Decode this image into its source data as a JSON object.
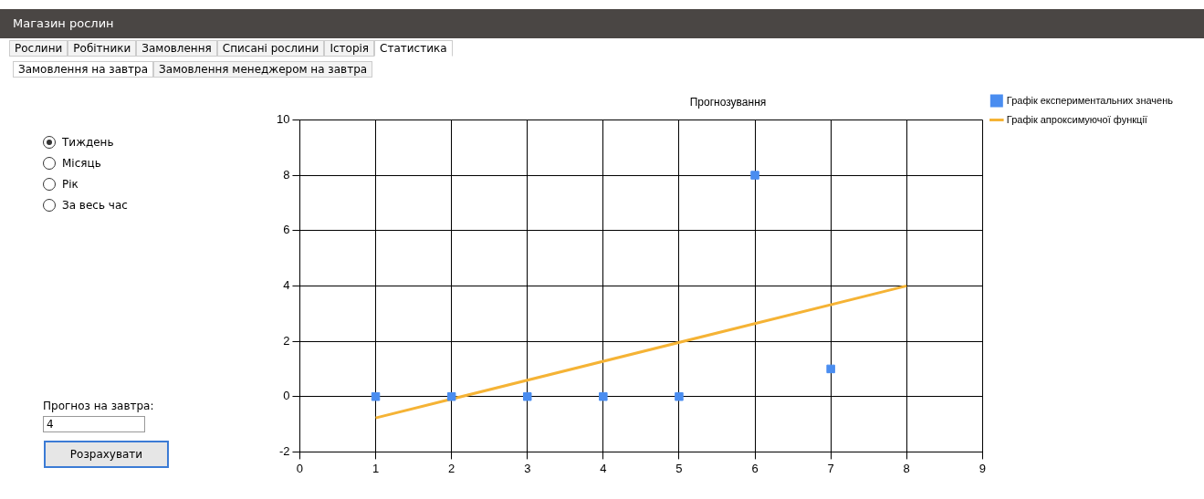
{
  "chart_data": {
    "type": "scatter",
    "title": "Прогнозування",
    "x": [
      1,
      2,
      3,
      4,
      5,
      6,
      7
    ],
    "series": [
      {
        "name": "Графік експериментальних значень",
        "color": "#4a8df0",
        "values": [
          0,
          0,
          0,
          0,
          0,
          8,
          1
        ],
        "marker": "square"
      },
      {
        "name": "Графік апроксимуючої функції",
        "type": "line",
        "color": "#f5b335",
        "x": [
          1,
          8
        ],
        "values": [
          -0.77,
          4
        ],
        "marker": "none",
        "line_style": "solid"
      }
    ],
    "xlim": [
      0,
      9
    ],
    "xticks": [
      0,
      1,
      2,
      3,
      4,
      5,
      6,
      7,
      8,
      9
    ],
    "ylim": [
      -2,
      10
    ],
    "yticks": [
      -2,
      0,
      2,
      4,
      6,
      8,
      10
    ],
    "grid": true,
    "legend": "top right",
    "annotations": [
      "Магазин рослин",
      "Рослини",
      "Робітники",
      "Замовлення",
      "Списані рослини",
      "Історія",
      "Статистика",
      "Замовлення на завтра",
      "Замовлення менеджером на завтра",
      "Тиждень",
      "Місяць",
      "Рік",
      "За весь час",
      "Прогноз на завтра:",
      "4",
      "Розрахувати"
    ]
  }
}
